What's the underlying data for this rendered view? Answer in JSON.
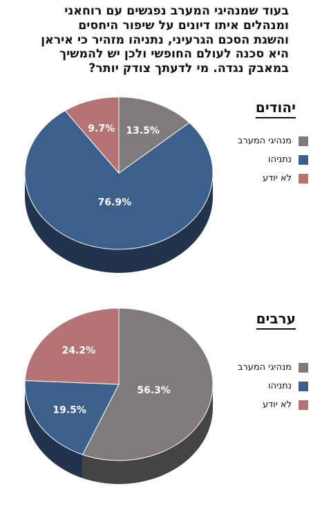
{
  "question": [
    "בעוד שמנהיגי המערב נפגשים עם רוחאני",
    "ומנהלים איתו דיונים על שיפור היחסים",
    "והשגת הסכם הגרעיני, נתניהו מזהיר כי איראן",
    "היא סכנה לעולם החופשי ולכן יש להמשיך",
    "במאבק נגדה. מי לדעתך צודק יותר?"
  ],
  "colors": {
    "west_leaders": "#7d7b7c",
    "netanyahu": "#3d5f8c",
    "dont_know": "#b67374"
  },
  "chart_data": [
    {
      "type": "pie",
      "title": "יהודים",
      "categories": [
        "מנהיגי המערב",
        "נתניהו",
        "לא יודע"
      ],
      "values": [
        13.5,
        76.9,
        9.7
      ],
      "labels": [
        "13.5%",
        "76.9%",
        "9.7%"
      ],
      "colors": [
        "#7d7b7c",
        "#3d5f8c",
        "#b67374"
      ],
      "legend": "right"
    },
    {
      "type": "pie",
      "title": "ערבים",
      "categories": [
        "מנהיגי המערב",
        "נתניהו",
        "לא יודע"
      ],
      "values": [
        56.3,
        19.5,
        24.2
      ],
      "labels": [
        "56.3%",
        "19.5%",
        "24.2%"
      ],
      "colors": [
        "#7d7b7c",
        "#3d5f8c",
        "#b67374"
      ],
      "legend": "right"
    }
  ]
}
